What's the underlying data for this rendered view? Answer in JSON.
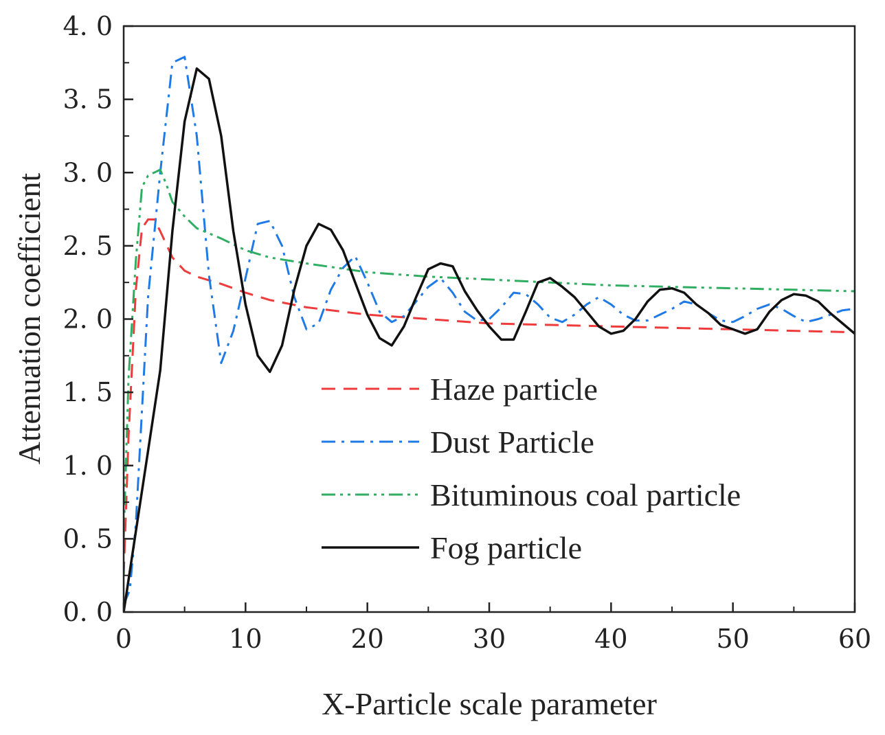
{
  "chart_data": {
    "type": "line",
    "title": "",
    "xlabel": "X-Particle scale parameter",
    "ylabel": "Attenuation coefficient",
    "xlim": [
      0,
      60
    ],
    "ylim": [
      0,
      4
    ],
    "xticks": [
      0,
      10,
      20,
      30,
      40,
      50,
      60
    ],
    "xtick_labels": [
      "0",
      "10",
      "20",
      "30",
      "40",
      "50",
      "60"
    ],
    "yticks": [
      0,
      0.5,
      1,
      1.5,
      2,
      2.5,
      3,
      3.5,
      4
    ],
    "ytick_labels": [
      "0. 0",
      "0. 5",
      "1. 0",
      "1. 5",
      "2. 0",
      "2. 5",
      "3. 0",
      "3. 5",
      "4. 0"
    ],
    "grid": false,
    "legend_position": "center-right",
    "series": [
      {
        "name": "Haze particle",
        "color": "#ee3b3b",
        "dash": "dashed",
        "x": [
          0,
          0.4,
          1,
          1.5,
          2,
          2.5,
          3,
          4,
          5,
          6,
          8,
          10,
          12,
          15,
          20,
          25,
          30,
          35,
          40,
          45,
          50,
          55,
          60
        ],
        "y": [
          0.25,
          1.2,
          2.2,
          2.62,
          2.68,
          2.68,
          2.6,
          2.42,
          2.33,
          2.29,
          2.24,
          2.18,
          2.13,
          2.08,
          2.03,
          2.0,
          1.97,
          1.96,
          1.95,
          1.94,
          1.93,
          1.92,
          1.91
        ]
      },
      {
        "name": "Dust Particle",
        "color": "#1f7ae6",
        "dash": "dashdot",
        "x": [
          0,
          0.5,
          1,
          2,
          3,
          4,
          5,
          6,
          7,
          8,
          9,
          10,
          11,
          12,
          13,
          14,
          15,
          16,
          17,
          18,
          19,
          20,
          21,
          22,
          23,
          24,
          25,
          26,
          27,
          28,
          29,
          30,
          31,
          32,
          33,
          34,
          35,
          36,
          37,
          38,
          39,
          40,
          41,
          42,
          43,
          44,
          45,
          46,
          47,
          48,
          49,
          50,
          51,
          52,
          53,
          54,
          55,
          56,
          57,
          58,
          59,
          60
        ],
        "y": [
          0.05,
          0.15,
          0.6,
          2.15,
          3.0,
          3.75,
          3.79,
          3.25,
          2.3,
          1.7,
          1.92,
          2.28,
          2.65,
          2.67,
          2.5,
          2.15,
          1.93,
          1.97,
          2.2,
          2.35,
          2.43,
          2.25,
          2.05,
          1.98,
          2.02,
          2.12,
          2.22,
          2.28,
          2.18,
          2.05,
          1.99,
          2.0,
          2.08,
          2.18,
          2.17,
          2.1,
          2.01,
          1.98,
          2.03,
          2.1,
          2.15,
          2.1,
          2.03,
          1.99,
          1.99,
          2.03,
          2.07,
          2.12,
          2.1,
          2.04,
          1.99,
          1.98,
          2.02,
          2.07,
          2.1,
          2.07,
          2.02,
          1.98,
          2.0,
          2.03,
          2.06,
          2.07
        ]
      },
      {
        "name": "Bituminous coal particle",
        "color": "#2fae62",
        "dash": "dashdotdot",
        "x": [
          0,
          0.4,
          1,
          1.5,
          2,
          2.5,
          3,
          3.5,
          4,
          5,
          6,
          8,
          10,
          12,
          15,
          20,
          25,
          30,
          35,
          40,
          45,
          50,
          55,
          60
        ],
        "y": [
          0.5,
          1.6,
          2.4,
          2.9,
          2.98,
          3.0,
          3.02,
          2.92,
          2.8,
          2.7,
          2.62,
          2.55,
          2.47,
          2.42,
          2.38,
          2.32,
          2.29,
          2.27,
          2.25,
          2.23,
          2.22,
          2.21,
          2.2,
          2.19
        ]
      },
      {
        "name": "Fog particle",
        "color": "#111111",
        "dash": "solid",
        "x": [
          0,
          1,
          2,
          3,
          4,
          5,
          6,
          7,
          8,
          9,
          10,
          11,
          12,
          13,
          14,
          15,
          16,
          17,
          18,
          19,
          20,
          21,
          22,
          23,
          24,
          25,
          26,
          27,
          28,
          29,
          30,
          31,
          32,
          33,
          34,
          35,
          36,
          37,
          38,
          39,
          40,
          41,
          42,
          43,
          44,
          45,
          46,
          47,
          48,
          49,
          50,
          51,
          52,
          53,
          54,
          55,
          56,
          57,
          58,
          59,
          60
        ],
        "y": [
          0,
          0.55,
          1.1,
          1.65,
          2.6,
          3.35,
          3.71,
          3.64,
          3.25,
          2.6,
          2.1,
          1.75,
          1.64,
          1.82,
          2.2,
          2.5,
          2.65,
          2.61,
          2.47,
          2.25,
          2.03,
          1.87,
          1.82,
          1.95,
          2.15,
          2.34,
          2.38,
          2.36,
          2.19,
          2.06,
          1.95,
          1.86,
          1.86,
          2.05,
          2.25,
          2.28,
          2.22,
          2.15,
          2.05,
          1.95,
          1.9,
          1.92,
          2.0,
          2.12,
          2.2,
          2.21,
          2.18,
          2.1,
          2.04,
          1.96,
          1.93,
          1.9,
          1.93,
          2.05,
          2.13,
          2.17,
          2.16,
          2.12,
          2.04,
          1.97,
          1.9
        ]
      }
    ]
  }
}
